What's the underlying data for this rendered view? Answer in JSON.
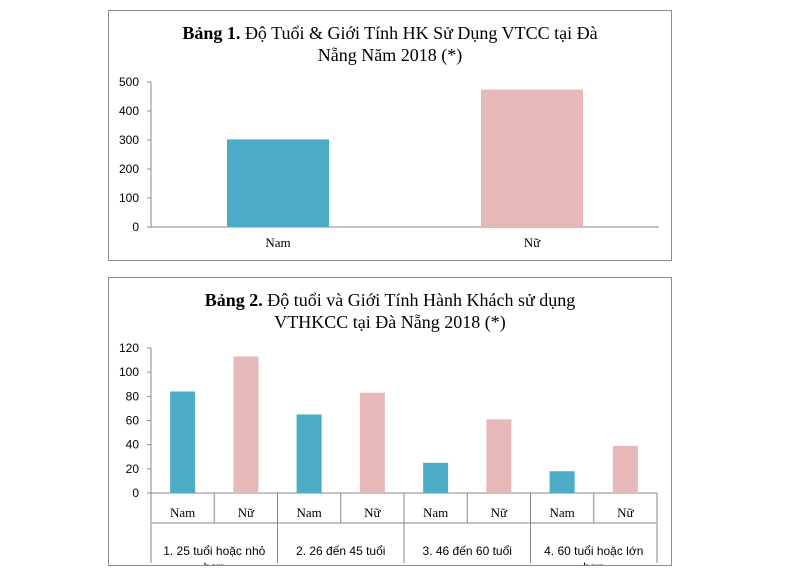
{
  "chart_data": [
    {
      "type": "bar",
      "title_bold": "Bảng 1.",
      "title_line1_rest": "Độ Tuổi & Giới Tính HK Sử Dụng VTCC tại Đà",
      "title_line2": "Nẵng Năm 2018 (*)",
      "categories": [
        "Nam",
        "Nữ"
      ],
      "values": [
        302,
        474
      ],
      "colors": [
        "#4bacc6",
        "#e6b9b8"
      ],
      "ylim": [
        0,
        500
      ],
      "yticks": [
        0,
        100,
        200,
        300,
        400,
        500
      ],
      "grid": false,
      "legend": "none"
    },
    {
      "type": "bar",
      "title_bold": "Bảng 2.",
      "title_line1_rest": "Độ tuổi và Giới Tính Hành Khách sử dụng",
      "title_line2": "VTHKCC tại Đà Nẵng 2018 (*)",
      "groups": [
        {
          "label_line1": "1. 25 tuổi hoặc nhỏ",
          "label_line2": "hơn",
          "categories": [
            "Nam",
            "Nữ"
          ],
          "values": [
            84,
            113
          ]
        },
        {
          "label_line1": "2. 26 đến 45 tuổi",
          "label_line2": "",
          "categories": [
            "Nam",
            "Nữ"
          ],
          "values": [
            65,
            83
          ]
        },
        {
          "label_line1": "3. 46 đến 60 tuổi",
          "label_line2": "",
          "categories": [
            "Nam",
            "Nữ"
          ],
          "values": [
            25,
            61
          ]
        },
        {
          "label_line1": "4. 60 tuổi hoặc lớn",
          "label_line2": "hơn",
          "categories": [
            "Nam",
            "Nữ"
          ],
          "values": [
            18,
            39
          ]
        }
      ],
      "colors": [
        "#4bacc6",
        "#e6b9b8"
      ],
      "ylim": [
        0,
        120
      ],
      "yticks": [
        0,
        20,
        40,
        60,
        80,
        100,
        120
      ],
      "grid": false,
      "legend": "none"
    }
  ]
}
